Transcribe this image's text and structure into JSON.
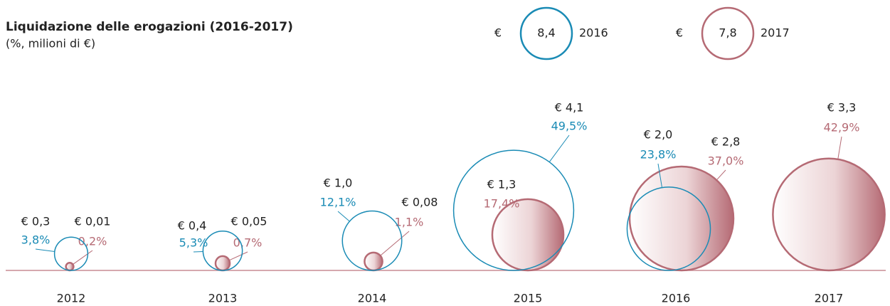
{
  "chart_data": {
    "type": "bubble",
    "title": "Liquidazione delle erogazioni (2016-2017)",
    "subtitle": "(%, milioni di €)",
    "currency": "€",
    "categories": [
      "2012",
      "2013",
      "2014",
      "2015",
      "2016",
      "2017"
    ],
    "series": [
      {
        "name": "2016",
        "color": "#1a8bb5",
        "total": 8.4,
        "total_label": "8,4",
        "values": [
          0.3,
          0.4,
          1.0,
          4.1,
          2.0,
          null
        ],
        "value_labels": [
          "€ 0,3",
          "€ 0,4",
          "€ 1,0",
          "€ 4,1",
          "€ 2,0",
          null
        ],
        "shares": [
          3.8,
          5.3,
          12.1,
          49.5,
          23.8,
          null
        ],
        "share_labels": [
          "3,8%",
          "5,3%",
          "12,1%",
          "49,5%",
          "23,8%",
          null
        ]
      },
      {
        "name": "2017",
        "color": "#b56a74",
        "total": 7.8,
        "total_label": "7,8",
        "values": [
          0.01,
          0.05,
          0.08,
          1.3,
          2.8,
          3.3
        ],
        "value_labels": [
          "€ 0,01",
          "€ 0,05",
          "€ 0,08",
          "€ 1,3",
          "€ 2,8",
          "€ 3,3"
        ],
        "shares": [
          0.2,
          0.7,
          1.1,
          17.4,
          37.0,
          42.9
        ],
        "share_labels": [
          "0,2%",
          "0,7%",
          "1,1%",
          "17,4%",
          "37,0%",
          "42,9%"
        ]
      }
    ]
  }
}
